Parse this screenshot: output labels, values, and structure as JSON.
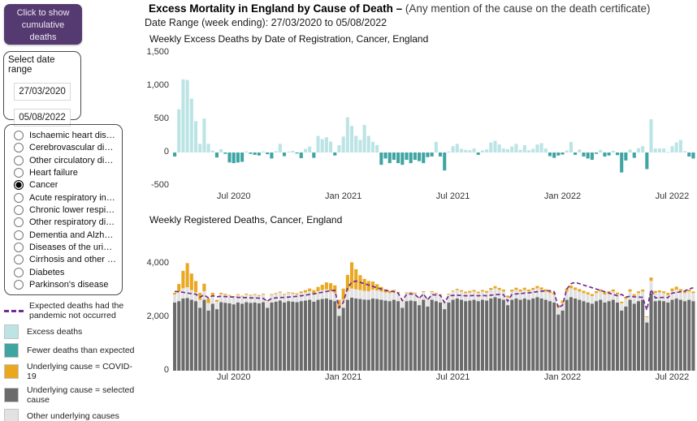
{
  "header": {
    "title_bold": "Excess Mortality in England by Cause of Death –",
    "title_rest": " (Any mention of the cause on the death certificate)",
    "date_range": "Date Range (week ending): 27/03/2020 to 05/08/2022"
  },
  "controls": {
    "cumulative_button": "Click to show cumulative deaths",
    "date_box": {
      "label": "Select date range",
      "start": "27/03/2020",
      "end": "05/08/2022"
    },
    "causes": [
      {
        "label": "Ischaemic heart dise...",
        "selected": false
      },
      {
        "label": "Cerebrovascular dise...",
        "selected": false
      },
      {
        "label": "Other circulatory dise...",
        "selected": false
      },
      {
        "label": "Heart failure",
        "selected": false
      },
      {
        "label": "Cancer",
        "selected": true
      },
      {
        "label": "Acute respiratory infe...",
        "selected": false
      },
      {
        "label": "Chronic lower respira...",
        "selected": false
      },
      {
        "label": "Other respiratory dis...",
        "selected": false
      },
      {
        "label": "Dementia and Alzhei...",
        "selected": false
      },
      {
        "label": "Diseases of the urina...",
        "selected": false
      },
      {
        "label": "Cirrhosis and other li...",
        "selected": false
      },
      {
        "label": "Diabetes",
        "selected": false
      },
      {
        "label": "Parkinson's disease",
        "selected": false
      }
    ]
  },
  "legend": {
    "items": [
      {
        "type": "line",
        "color": "#722B8E",
        "label": "Expected deaths had the pandemic not occurred"
      },
      {
        "type": "square",
        "color": "#BCE4E5",
        "label": "Excess deaths"
      },
      {
        "type": "square",
        "color": "#3FA5A3",
        "label": "Fewer deaths than expected"
      },
      {
        "type": "square",
        "color": "#EAA720",
        "label": "Underlying cause  = COVID-19"
      },
      {
        "type": "square",
        "color": "#6B6B6B",
        "label": "Underlying cause = selected cause"
      },
      {
        "type": "square",
        "color": "#E2E2E2",
        "label": "Other underlying causes"
      }
    ]
  },
  "chart_data": [
    {
      "type": "bar",
      "title": "Weekly Excess Deaths by Date of Registration, Cancer, England",
      "x_start_week_ending": "27/03/2020",
      "x_end_week_ending": "05/08/2022",
      "ylim": [
        -500,
        1500
      ],
      "y_ticks": [
        {
          "v": 1500,
          "label": "1,500"
        },
        {
          "v": 1000,
          "label": "1,000"
        },
        {
          "v": 500,
          "label": "500"
        },
        {
          "v": 0,
          "label": "0"
        },
        {
          "v": -500,
          "label": "-500"
        }
      ],
      "x_ticks": [
        {
          "week": 14,
          "label": "Jul 2020"
        },
        {
          "week": 40,
          "label": "Jan 2021"
        },
        {
          "week": 66,
          "label": "Jul 2021"
        },
        {
          "week": 92,
          "label": "Jan 2022"
        },
        {
          "week": 118,
          "label": "Jul 2022"
        }
      ],
      "positive_color": "#BCE4E5",
      "negative_color": "#3FA5A3",
      "values": [
        -60,
        650,
        1100,
        1090,
        810,
        470,
        130,
        510,
        130,
        30,
        -75,
        50,
        -20,
        -150,
        -160,
        -150,
        -140,
        15,
        -20,
        -35,
        -45,
        15,
        -25,
        -90,
        20,
        130,
        -55,
        15,
        25,
        -15,
        -85,
        55,
        90,
        -80,
        250,
        200,
        230,
        165,
        -45,
        110,
        240,
        530,
        400,
        250,
        190,
        415,
        250,
        160,
        110,
        -185,
        -90,
        -160,
        -110,
        -160,
        -185,
        -110,
        -160,
        -110,
        -130,
        -160,
        -70,
        -60,
        160,
        -60,
        -270,
        15,
        95,
        130,
        55,
        40,
        35,
        60,
        -35,
        30,
        45,
        150,
        175,
        120,
        60,
        50,
        90,
        130,
        40,
        110,
        35,
        55,
        120,
        140,
        60,
        -55,
        -80,
        -45,
        -30,
        30,
        160,
        -35,
        45,
        -60,
        -90,
        -110,
        -20,
        40,
        -60,
        -45,
        25,
        -40,
        -300,
        -120,
        45,
        -80,
        65,
        95,
        -250,
        500,
        60,
        60,
        60,
        10,
        95,
        150,
        190,
        20,
        -60,
        -90
      ]
    },
    {
      "type": "stacked_bar",
      "title": "Weekly Registered Deaths, Cancer, England",
      "ylim": [
        0,
        4400
      ],
      "y_ticks": [
        {
          "v": 4000,
          "label": "4,000"
        },
        {
          "v": 2000,
          "label": "2,000"
        },
        {
          "v": 0,
          "label": "0"
        }
      ],
      "x_ticks": [
        {
          "week": 14,
          "label": "Jul 2020"
        },
        {
          "week": 40,
          "label": "Jan 2021"
        },
        {
          "week": 66,
          "label": "Jul 2021"
        },
        {
          "week": 92,
          "label": "Jan 2022"
        },
        {
          "week": 118,
          "label": "Jul 2022"
        }
      ],
      "series": [
        {
          "name": "Underlying cause = selected cause",
          "color": "#6B6B6B",
          "values": [
            2550,
            2600,
            2700,
            2720,
            2650,
            2600,
            2350,
            2650,
            2250,
            2500,
            2300,
            2560,
            2540,
            2520,
            2480,
            2550,
            2500,
            2560,
            2530,
            2550,
            2520,
            2560,
            2350,
            2550,
            2580,
            2620,
            2550,
            2600,
            2580,
            2560,
            2600,
            2620,
            2650,
            2580,
            2650,
            2680,
            2700,
            2650,
            2600,
            2050,
            2350,
            2650,
            2730,
            2700,
            2680,
            2660,
            2650,
            2700,
            2680,
            2650,
            2620,
            2600,
            2650,
            2600,
            2350,
            2600,
            2620,
            2600,
            2450,
            2650,
            2400,
            2650,
            2600,
            2550,
            2300,
            2550,
            2650,
            2700,
            2650,
            2600,
            2620,
            2650,
            2600,
            2650,
            2620,
            2700,
            2750,
            2700,
            2650,
            2450,
            2650,
            2700,
            2650,
            2700,
            2650,
            2700,
            2750,
            2700,
            2650,
            2600,
            2550,
            2100,
            2250,
            2650,
            2750,
            2700,
            2650,
            2600,
            2550,
            2500,
            2600,
            2650,
            2550,
            2600,
            2650,
            2550,
            2250,
            2400,
            2650,
            2500,
            2600,
            2650,
            1800,
            2880,
            2600,
            2620,
            2600,
            2550,
            2650,
            2700,
            2650,
            2600,
            2650,
            2600
          ]
        },
        {
          "name": "Other underlying causes",
          "color": "#E2E2E2",
          "values": [
            300,
            340,
            380,
            400,
            360,
            330,
            300,
            320,
            280,
            300,
            280,
            300,
            290,
            280,
            280,
            290,
            280,
            300,
            290,
            300,
            290,
            300,
            270,
            290,
            300,
            310,
            290,
            300,
            300,
            290,
            300,
            310,
            320,
            300,
            320,
            330,
            340,
            320,
            310,
            280,
            300,
            330,
            340,
            340,
            330,
            320,
            320,
            330,
            320,
            310,
            300,
            300,
            310,
            300,
            280,
            300,
            300,
            300,
            290,
            310,
            280,
            310,
            300,
            290,
            270,
            300,
            310,
            320,
            310,
            300,
            300,
            310,
            300,
            310,
            300,
            320,
            330,
            320,
            310,
            290,
            310,
            320,
            310,
            320,
            310,
            320,
            330,
            320,
            310,
            300,
            300,
            260,
            270,
            310,
            330,
            320,
            310,
            300,
            300,
            290,
            300,
            310,
            300,
            300,
            310,
            300,
            270,
            290,
            310,
            290,
            300,
            310,
            200,
            480,
            300,
            310,
            300,
            280,
            320,
            330,
            310,
            300,
            310,
            300
          ]
        },
        {
          "name": "Underlying cause = COVID-19",
          "color": "#EAA720",
          "values": [
            60,
            300,
            650,
            900,
            620,
            420,
            260,
            280,
            170,
            110,
            70,
            50,
            40,
            30,
            25,
            20,
            20,
            15,
            15,
            15,
            15,
            15,
            15,
            20,
            20,
            25,
            25,
            30,
            35,
            40,
            60,
            80,
            100,
            130,
            160,
            200,
            260,
            300,
            280,
            320,
            420,
            600,
            980,
            750,
            560,
            450,
            380,
            300,
            230,
            170,
            120,
            80,
            60,
            40,
            30,
            25,
            20,
            15,
            15,
            10,
            10,
            10,
            10,
            15,
            20,
            25,
            30,
            40,
            50,
            55,
            60,
            55,
            50,
            55,
            60,
            70,
            80,
            75,
            70,
            65,
            70,
            80,
            75,
            80,
            70,
            75,
            85,
            90,
            80,
            70,
            75,
            90,
            100,
            110,
            100,
            90,
            90,
            85,
            80,
            75,
            70,
            80,
            75,
            70,
            75,
            70,
            60,
            70,
            80,
            70,
            65,
            70,
            30,
            120,
            80,
            70,
            65,
            80,
            100,
            110,
            90,
            80,
            70,
            60
          ]
        }
      ],
      "line": {
        "name": "Expected deaths had the pandemic not occurred",
        "color": "#722B8E",
        "style": "dashed",
        "values": [
          2960,
          2950,
          2930,
          2900,
          2880,
          2860,
          2750,
          2830,
          2720,
          2800,
          2760,
          2780,
          2770,
          2760,
          2750,
          2740,
          2730,
          2730,
          2720,
          2720,
          2710,
          2700,
          2600,
          2700,
          2720,
          2730,
          2740,
          2750,
          2760,
          2780,
          2800,
          2820,
          2850,
          2870,
          2900,
          2930,
          2960,
          2990,
          3000,
          2350,
          2550,
          3100,
          3300,
          3350,
          3300,
          3250,
          3200,
          3150,
          3100,
          3050,
          3000,
          2980,
          2950,
          2900,
          2620,
          2850,
          2870,
          2850,
          2700,
          2870,
          2650,
          2840,
          2830,
          2820,
          2550,
          2800,
          2810,
          2820,
          2810,
          2800,
          2800,
          2810,
          2800,
          2810,
          2800,
          2820,
          2840,
          2850,
          2840,
          2600,
          2850,
          2870,
          2880,
          2900,
          2910,
          2930,
          2950,
          2970,
          2980,
          2990,
          2950,
          2350,
          2450,
          3050,
          3250,
          3300,
          3250,
          3200,
          3150,
          3100,
          3050,
          3000,
          2950,
          2900,
          2850,
          2800,
          2850,
          2750,
          2780,
          2760,
          2750,
          2740,
          2270,
          3030,
          2720,
          2730,
          2740,
          2730,
          2900,
          2920,
          2950,
          2980,
          3050,
          3100
        ]
      }
    }
  ]
}
